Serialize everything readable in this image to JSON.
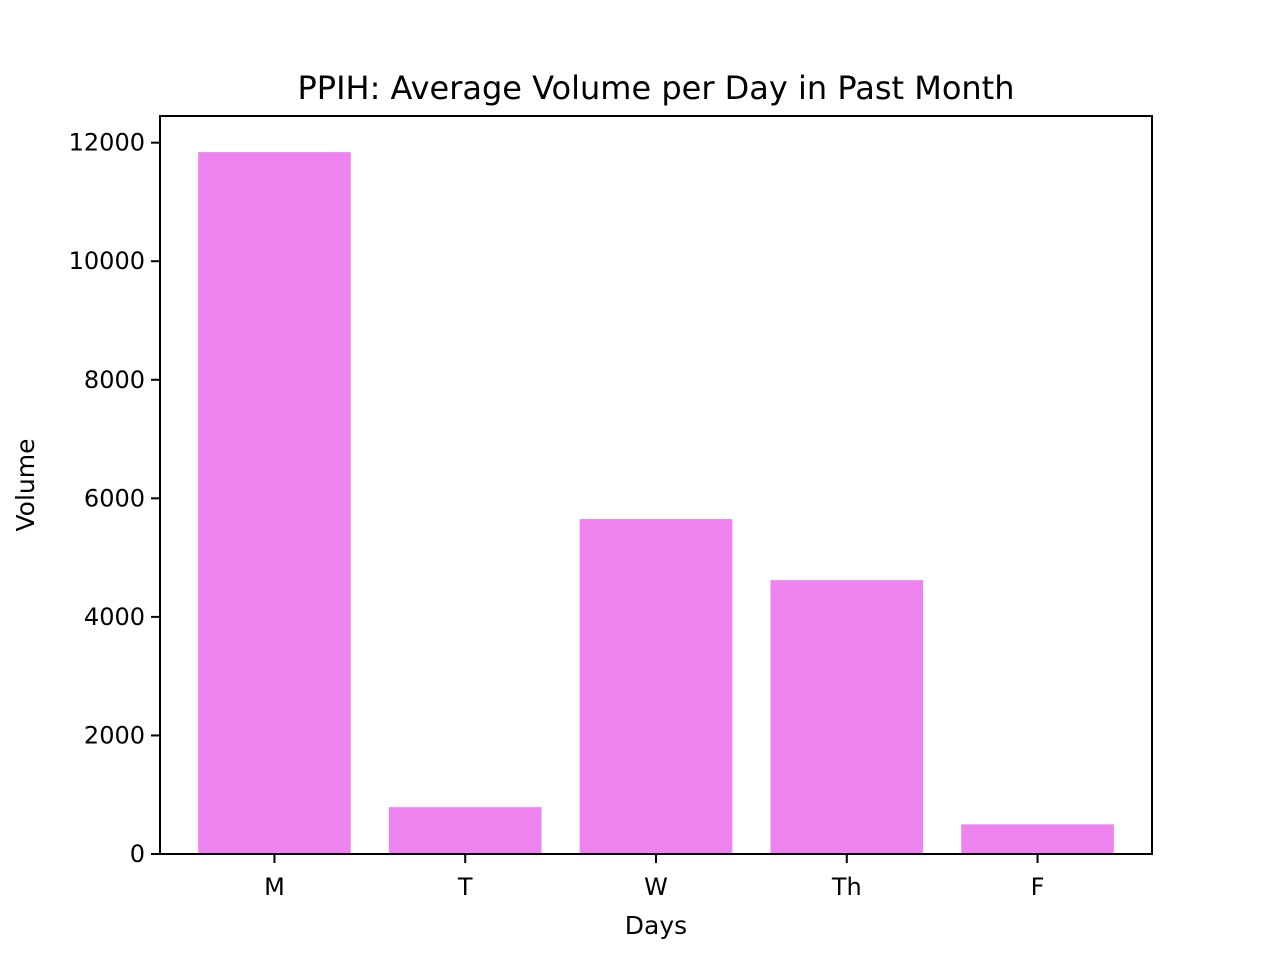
{
  "chart_data": {
    "type": "bar",
    "title": "PPIH: Average Volume per Day in Past Month",
    "xlabel": "Days",
    "ylabel": "Volume",
    "categories": [
      "M",
      "T",
      "W",
      "Th",
      "F"
    ],
    "values": [
      11840,
      790,
      5650,
      4620,
      500
    ],
    "ylim": [
      0,
      12450
    ],
    "yticks": [
      0,
      2000,
      4000,
      6000,
      8000,
      10000,
      12000
    ],
    "ytick_labels": [
      "0",
      "2000",
      "4000",
      "6000",
      "8000",
      "10000",
      "12000"
    ],
    "grid": false,
    "legend": "none",
    "bar_color": "#ee82ee"
  }
}
